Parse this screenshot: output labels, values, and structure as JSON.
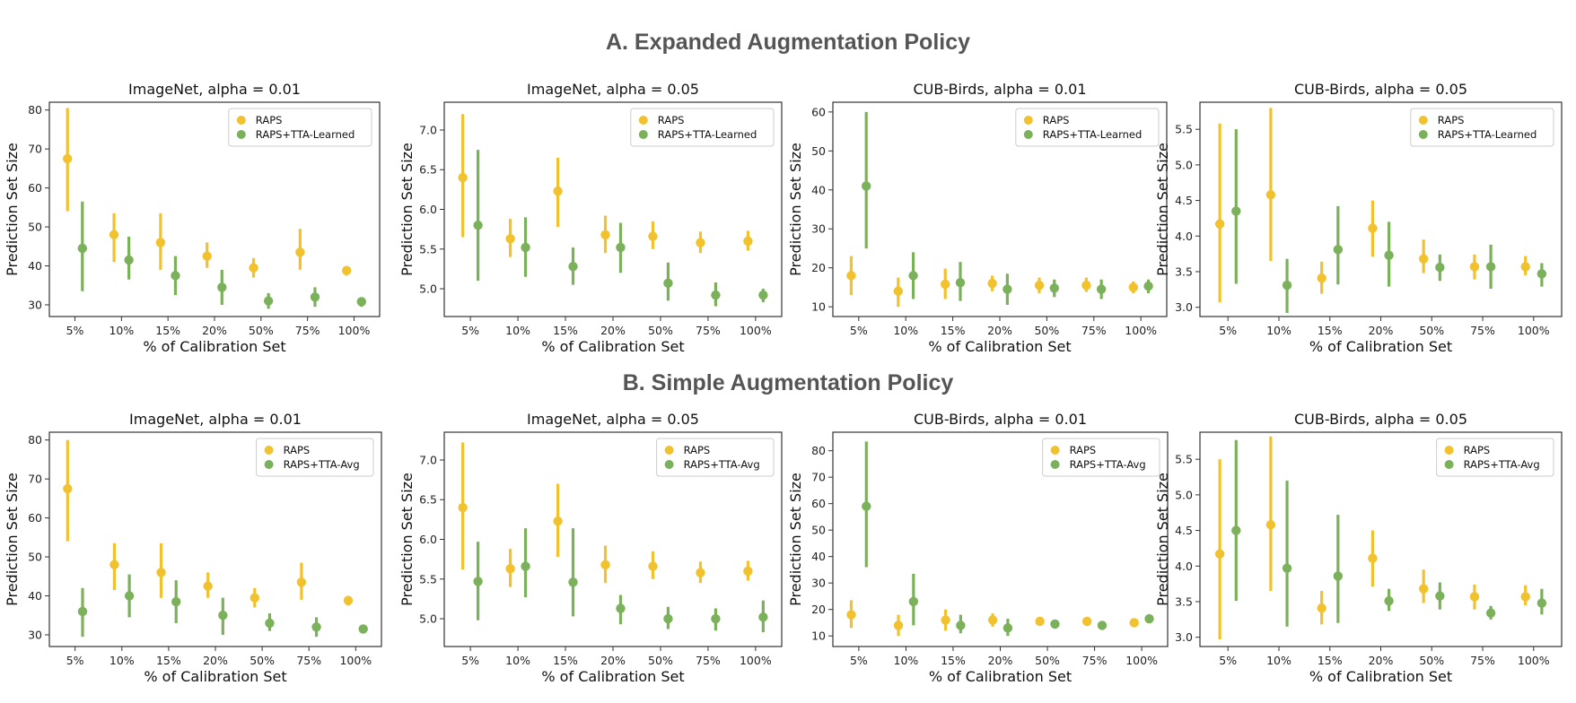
{
  "sections": {
    "a_title": "A. Expanded Augmentation Policy",
    "b_title": "B. Simple Augmentation Policy"
  },
  "colors": {
    "raps": "#f2c12e",
    "tta": "#7bb15b",
    "axis": "#333333"
  },
  "chart_data": [
    {
      "type": "scatter",
      "title": "ImageNet, alpha = 0.01",
      "xlabel": "% of Calibration Set",
      "ylabel": "Prediction Set Size",
      "categories": [
        "5%",
        "10%",
        "15%",
        "20%",
        "50%",
        "75%",
        "100%"
      ],
      "ylim": [
        27,
        82
      ],
      "yticks": [
        30,
        40,
        50,
        60,
        70,
        80
      ],
      "legend_position": "top-right",
      "series": [
        {
          "name": "RAPS",
          "values": [
            67.5,
            48,
            46,
            42.5,
            39.5,
            43.5,
            38.8
          ],
          "low": [
            54,
            41,
            39,
            39.5,
            37,
            39,
            37.5
          ],
          "high": [
            80.5,
            53.5,
            53.5,
            46,
            42,
            49.5,
            40
          ]
        },
        {
          "name": "RAPS+TTA-Learned",
          "values": [
            44.5,
            41.5,
            37.5,
            34.5,
            31,
            32,
            30.8
          ],
          "low": [
            33.5,
            36.5,
            32.5,
            30,
            29,
            29.5,
            29.5
          ],
          "high": [
            56.5,
            47.5,
            42.5,
            39,
            33,
            34.5,
            31.8
          ]
        }
      ]
    },
    {
      "type": "scatter",
      "title": "ImageNet, alpha = 0.05",
      "xlabel": "% of Calibration Set",
      "ylabel": "Prediction Set Size",
      "categories": [
        "5%",
        "10%",
        "15%",
        "20%",
        "50%",
        "75%",
        "100%"
      ],
      "ylim": [
        4.65,
        7.35
      ],
      "yticks": [
        5.0,
        5.5,
        6.0,
        6.5,
        7.0
      ],
      "legend_position": "top-right",
      "series": [
        {
          "name": "RAPS",
          "values": [
            6.4,
            5.63,
            6.23,
            5.68,
            5.66,
            5.58,
            5.6
          ],
          "low": [
            5.65,
            5.4,
            5.78,
            5.45,
            5.5,
            5.45,
            5.48
          ],
          "high": [
            7.2,
            5.88,
            6.65,
            5.92,
            5.85,
            5.72,
            5.73
          ]
        },
        {
          "name": "RAPS+TTA-Learned",
          "values": [
            5.8,
            5.52,
            5.28,
            5.52,
            5.07,
            4.92,
            4.92
          ],
          "low": [
            5.1,
            5.15,
            5.05,
            5.2,
            4.85,
            4.78,
            4.83
          ],
          "high": [
            6.75,
            5.9,
            5.52,
            5.83,
            5.33,
            5.08,
            5.0
          ]
        }
      ]
    },
    {
      "type": "scatter",
      "title": "CUB-Birds, alpha = 0.01",
      "xlabel": "% of Calibration Set",
      "ylabel": "Prediction Set Size",
      "categories": [
        "5%",
        "10%",
        "15%",
        "20%",
        "50%",
        "75%",
        "100%"
      ],
      "ylim": [
        7.5,
        62.5
      ],
      "yticks": [
        10,
        20,
        30,
        40,
        50,
        60
      ],
      "legend_position": "top-right",
      "series": [
        {
          "name": "RAPS",
          "values": [
            18,
            14,
            15.8,
            16,
            15.5,
            15.5,
            15
          ],
          "low": [
            13,
            10,
            12,
            14,
            13.5,
            13.8,
            13.5
          ],
          "high": [
            23,
            17.5,
            19.8,
            18,
            17.5,
            17.5,
            16.5
          ]
        },
        {
          "name": "RAPS+TTA-Learned",
          "values": [
            41,
            18,
            16.2,
            14.5,
            14.8,
            14.5,
            15.3
          ],
          "low": [
            25,
            12,
            11.5,
            10.5,
            12.5,
            12,
            13.5
          ],
          "high": [
            60,
            24,
            21.5,
            18.5,
            17,
            17,
            17
          ]
        }
      ]
    },
    {
      "type": "scatter",
      "title": "CUB-Birds, alpha = 0.05",
      "xlabel": "% of Calibration Set",
      "ylabel": "Prediction Set Size",
      "categories": [
        "5%",
        "10%",
        "15%",
        "20%",
        "50%",
        "75%",
        "100%"
      ],
      "ylim": [
        2.87,
        5.88
      ],
      "yticks": [
        3.0,
        3.5,
        4.0,
        4.5,
        5.0,
        5.5
      ],
      "legend_position": "top-right",
      "series": [
        {
          "name": "RAPS",
          "values": [
            4.17,
            4.58,
            3.41,
            4.11,
            3.68,
            3.57,
            3.57
          ],
          "low": [
            3.07,
            3.65,
            3.19,
            3.71,
            3.48,
            3.39,
            3.45
          ],
          "high": [
            5.58,
            5.8,
            3.64,
            4.5,
            3.95,
            3.74,
            3.72
          ]
        },
        {
          "name": "RAPS+TTA-Learned",
          "values": [
            4.35,
            3.31,
            3.81,
            3.73,
            3.56,
            3.57,
            3.47
          ],
          "low": [
            3.33,
            2.92,
            3.32,
            3.29,
            3.37,
            3.26,
            3.29
          ],
          "high": [
            5.5,
            3.68,
            4.42,
            4.2,
            3.74,
            3.88,
            3.62
          ]
        }
      ]
    },
    {
      "type": "scatter",
      "title": "ImageNet, alpha = 0.01",
      "xlabel": "% of Calibration Set",
      "ylabel": "Prediction Set Size",
      "categories": [
        "5%",
        "10%",
        "15%",
        "20%",
        "50%",
        "75%",
        "100%"
      ],
      "ylim": [
        27,
        82
      ],
      "yticks": [
        30,
        40,
        50,
        60,
        70,
        80
      ],
      "legend_position": "top-right",
      "series": [
        {
          "name": "RAPS",
          "values": [
            67.5,
            48,
            46,
            42.5,
            39.5,
            43.5,
            38.8
          ],
          "low": [
            54,
            41.5,
            39.5,
            39.5,
            37,
            39,
            37.5
          ],
          "high": [
            80,
            53.5,
            53.5,
            46,
            42,
            48.5,
            40
          ]
        },
        {
          "name": "RAPS+TTA-Avg",
          "values": [
            36,
            40,
            38.5,
            35,
            33,
            32,
            31.5
          ],
          "low": [
            29.5,
            34.5,
            33,
            30,
            31,
            29.5,
            30.5
          ],
          "high": [
            42,
            45.5,
            44,
            39.5,
            35.5,
            34.5,
            32.5
          ]
        }
      ]
    },
    {
      "type": "scatter",
      "title": "ImageNet, alpha = 0.05",
      "xlabel": "% of Calibration Set",
      "ylabel": "Prediction Set Size",
      "categories": [
        "5%",
        "10%",
        "15%",
        "20%",
        "50%",
        "75%",
        "100%"
      ],
      "ylim": [
        4.65,
        7.35
      ],
      "yticks": [
        5.0,
        5.5,
        6.0,
        6.5,
        7.0
      ],
      "legend_position": "top-right",
      "series": [
        {
          "name": "RAPS",
          "values": [
            6.4,
            5.63,
            6.23,
            5.68,
            5.66,
            5.58,
            5.6
          ],
          "low": [
            5.62,
            5.4,
            5.78,
            5.45,
            5.5,
            5.45,
            5.48
          ],
          "high": [
            7.22,
            5.88,
            6.7,
            5.92,
            5.85,
            5.72,
            5.73
          ]
        },
        {
          "name": "RAPS+TTA-Avg",
          "values": [
            5.47,
            5.66,
            5.46,
            5.13,
            5.0,
            5.0,
            5.02
          ],
          "low": [
            4.98,
            5.27,
            5.03,
            4.93,
            4.87,
            4.85,
            4.83
          ],
          "high": [
            5.97,
            6.14,
            6.14,
            5.3,
            5.15,
            5.13,
            5.23
          ]
        }
      ]
    },
    {
      "type": "scatter",
      "title": "CUB-Birds, alpha = 0.01",
      "xlabel": "% of Calibration Set",
      "ylabel": "Prediction Set Size",
      "categories": [
        "5%",
        "10%",
        "15%",
        "20%",
        "50%",
        "75%",
        "100%"
      ],
      "ylim": [
        6,
        87
      ],
      "yticks": [
        10,
        20,
        30,
        40,
        50,
        60,
        70,
        80
      ],
      "legend_position": "top-right",
      "series": [
        {
          "name": "RAPS",
          "values": [
            18,
            14,
            16,
            16,
            15.5,
            15.5,
            15
          ],
          "low": [
            13,
            10,
            12,
            13.5,
            14,
            14,
            14
          ],
          "high": [
            23.5,
            18,
            20,
            18.5,
            17,
            17,
            16
          ]
        },
        {
          "name": "RAPS+TTA-Avg",
          "values": [
            59,
            23,
            14,
            13,
            14.5,
            14,
            16.5
          ],
          "low": [
            36,
            14,
            11,
            10,
            13.5,
            13,
            15.5
          ],
          "high": [
            83.5,
            33.5,
            18,
            16.5,
            16,
            15.5,
            17.5
          ]
        }
      ]
    },
    {
      "type": "scatter",
      "title": "CUB-Birds, alpha = 0.05",
      "xlabel": "% of Calibration Set",
      "ylabel": "Prediction Set Size",
      "categories": [
        "5%",
        "10%",
        "15%",
        "20%",
        "50%",
        "75%",
        "100%"
      ],
      "ylim": [
        2.87,
        5.88
      ],
      "yticks": [
        3.0,
        3.5,
        4.0,
        4.5,
        5.0,
        5.5
      ],
      "legend_position": "top-right",
      "series": [
        {
          "name": "RAPS",
          "values": [
            4.17,
            4.58,
            3.41,
            4.11,
            3.68,
            3.57,
            3.57
          ],
          "low": [
            2.97,
            3.65,
            3.18,
            3.71,
            3.48,
            3.39,
            3.45
          ],
          "high": [
            5.5,
            5.82,
            3.65,
            4.5,
            3.95,
            3.74,
            3.73
          ]
        },
        {
          "name": "RAPS+TTA-Avg",
          "values": [
            4.5,
            3.97,
            3.86,
            3.51,
            3.58,
            3.34,
            3.48
          ],
          "low": [
            3.51,
            3.15,
            3.2,
            3.37,
            3.39,
            3.25,
            3.32
          ],
          "high": [
            5.77,
            5.2,
            4.72,
            3.68,
            3.77,
            3.44,
            3.68
          ]
        }
      ]
    }
  ]
}
